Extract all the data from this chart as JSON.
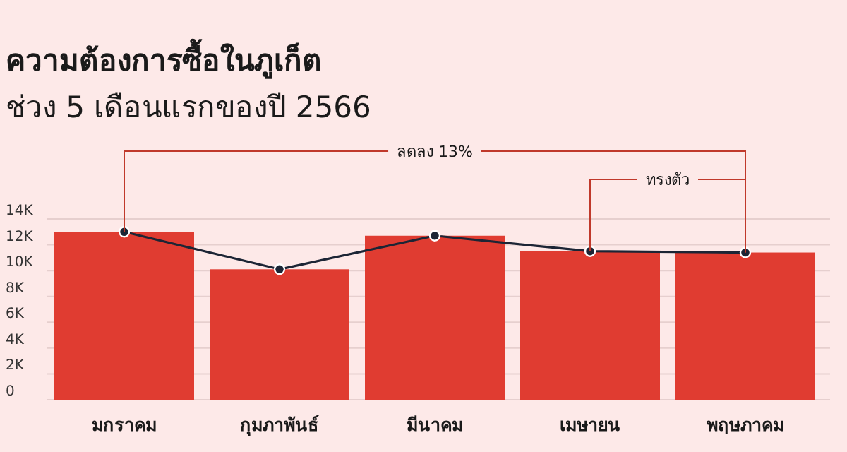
{
  "chart_data": {
    "type": "bar",
    "title": "ความต้องการซื้อในภูเก็ต",
    "subtitle": "ช่วง 5 เดือนแรกของปี 2566",
    "categories": [
      "มกราคม",
      "กุมภาพันธ์",
      "มีนาคม",
      "เมษายน",
      "พฤษภาคม"
    ],
    "series": [
      {
        "color": "#e03c31",
        "values": [
          13000,
          10100,
          12700,
          11500,
          11400
        ]
      },
      {
        "type": "line",
        "color": "#1c2535",
        "marker": "circle",
        "values": [
          13000,
          10100,
          12700,
          11500,
          11400
        ]
      }
    ],
    "ylim": [
      0,
      14000
    ],
    "yticks": [
      0,
      {
        "value": 2000,
        "label": "2K"
      },
      {
        "value": 4000,
        "label": "4K"
      },
      {
        "value": 6000,
        "label": "6K"
      },
      {
        "value": 8000,
        "label": "8K"
      },
      {
        "value": 10000,
        "label": "10K"
      },
      {
        "value": 12000,
        "label": "12K"
      },
      {
        "value": 14000,
        "label": "14K"
      }
    ],
    "grid": "y",
    "annotations": [
      "ลดลง 13%",
      "ทรงตัว"
    ]
  }
}
